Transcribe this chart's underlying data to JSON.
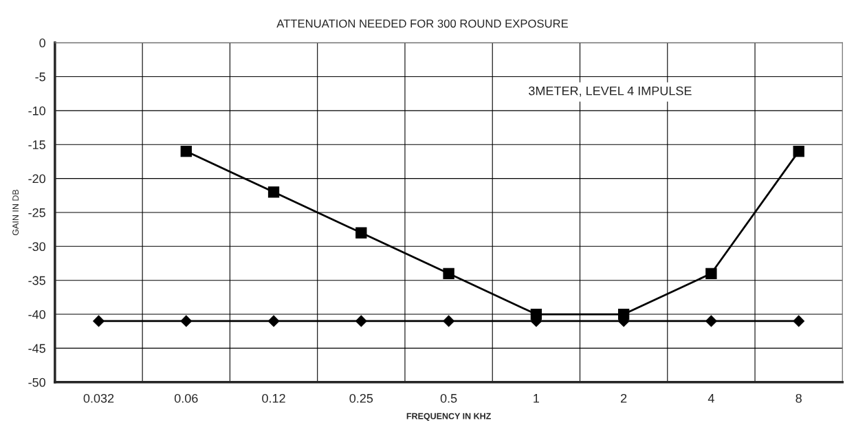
{
  "chart_data": {
    "type": "line",
    "title": "ATTENUATION NEEDED FOR 300 ROUND EXPOSURE",
    "xlabel": "FREQUENCY IN KHZ",
    "ylabel": "GAIN IN DB",
    "annotations": [
      "3METER, LEVEL 4 IMPULSE"
    ],
    "categories": [
      "0.032",
      "0.06",
      "0.12",
      "0.25",
      "0.5",
      "1",
      "2",
      "4",
      "8"
    ],
    "series": [
      {
        "color": "#000000",
        "marker": "square",
        "values": [
          null,
          -16,
          -22,
          -28,
          -34,
          -40,
          -40,
          -34,
          -16
        ]
      },
      {
        "color": "#000000",
        "marker": "diamond",
        "values": [
          -41,
          -41,
          -41,
          -41,
          -41,
          -41,
          -41,
          -41,
          -41
        ]
      }
    ],
    "ylim": [
      -50,
      0
    ],
    "yticks": [
      0,
      -5,
      -10,
      -15,
      -20,
      -25,
      -30,
      -35,
      -40,
      -45,
      -50
    ],
    "grid": true,
    "legend": false
  }
}
